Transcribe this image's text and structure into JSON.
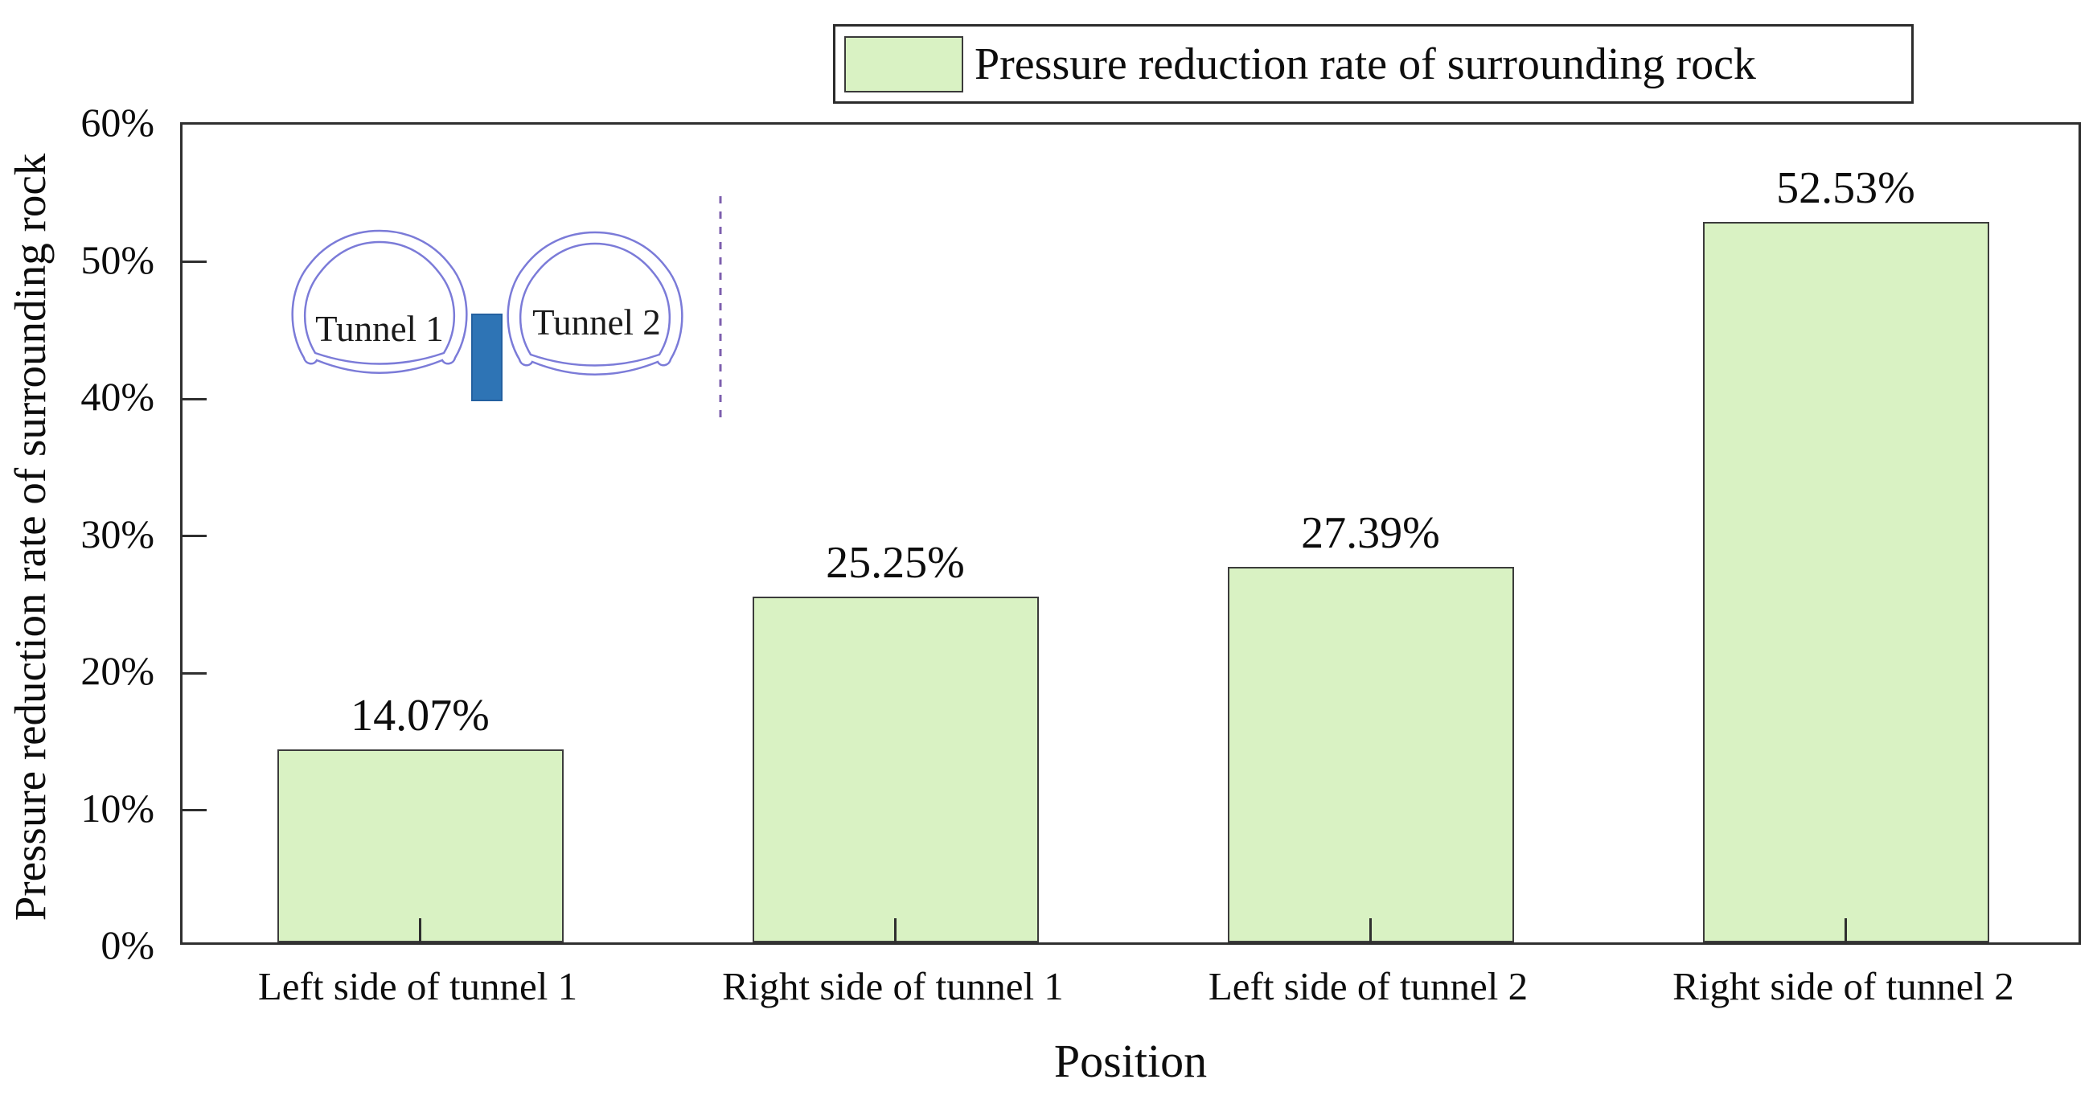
{
  "chart_data": {
    "type": "bar",
    "title": "",
    "categories": [
      "Left side of tunnel 1",
      "Right side of tunnel 1",
      "Left side of tunnel 2",
      "Right side of tunnel 2"
    ],
    "values": [
      14.07,
      25.25,
      27.39,
      52.53
    ],
    "value_labels": [
      "14.07%",
      "25.25%",
      "27.39%",
      "52.53%"
    ],
    "xlabel": "Position",
    "ylabel": "Pressure reduction rate of surrounding rock",
    "ylim": [
      0,
      60
    ],
    "ytick_step": 10,
    "ytick_labels": [
      "0%",
      "10%",
      "20%",
      "30%",
      "40%",
      "50%",
      "60%"
    ],
    "grid": false,
    "legend_position": "top-right-outside",
    "legend": {
      "entries": [
        {
          "label": "Pressure reduction rate of surrounding rock",
          "swatch_color": "#d9f2c3"
        }
      ]
    },
    "bar_fill_color": "#d9f2c3",
    "bar_border_color": "#3c3c3c",
    "axis_color": "#2f2f2f"
  },
  "inset": {
    "tunnel1_label": "Tunnel 1",
    "tunnel2_label": "Tunnel 2",
    "tunnel_outline_color": "#7b7bd8",
    "pillar_color": "#2e74b5",
    "pillar_border_color": "#2360a0",
    "dashed_line_color": "#7d5fae"
  }
}
